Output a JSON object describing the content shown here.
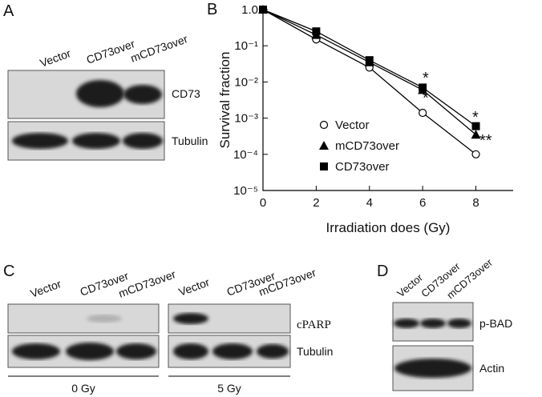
{
  "panel_a": {
    "label": "A",
    "lanes": [
      "Vector",
      "CD73over",
      "mCD73over"
    ],
    "blots": [
      "CD73",
      "Tubulin"
    ]
  },
  "chart_data": {
    "type": "line",
    "panel_label": "B",
    "xlabel": "Irradiation does (Gy)",
    "ylabel": "Survival fraction",
    "x": [
      0,
      2,
      4,
      6,
      8
    ],
    "series": [
      {
        "name": "Vector",
        "color": "#000000",
        "marker": "circle",
        "values": [
          1.0,
          0.15,
          0.025,
          0.0014,
          0.0001
        ]
      },
      {
        "name": "mCD73over",
        "color": "#000000",
        "marker": "triangle",
        "values": [
          1.0,
          0.2,
          0.035,
          0.006,
          0.00035
        ]
      },
      {
        "name": "CD73over",
        "color": "#000000",
        "marker": "square",
        "values": [
          1.0,
          0.25,
          0.04,
          0.007,
          0.0006
        ]
      }
    ],
    "xlim": [
      0,
      9.4
    ],
    "xticks": [
      0,
      2,
      4,
      6,
      8
    ],
    "ylim": [
      1e-05,
      1
    ],
    "yticks": [
      {
        "value": 1,
        "label": "1.0"
      },
      {
        "value": 0.1,
        "label": "10⁻¹"
      },
      {
        "value": 0.01,
        "label": "10⁻²"
      },
      {
        "value": 0.001,
        "label": "10⁻³"
      },
      {
        "value": 0.0001,
        "label": "10⁻⁴"
      },
      {
        "value": 1e-05,
        "label": "10⁻⁵"
      }
    ],
    "log_y": true,
    "annotations": [
      "*",
      "*",
      "*",
      "**"
    ]
  },
  "panel_c": {
    "label": "C",
    "groups": [
      {
        "lanes": [
          "Vector",
          "CD73over",
          "mCD73over"
        ],
        "dose": "0 Gy"
      },
      {
        "lanes": [
          "Vector",
          "CD73over",
          "mCD73over"
        ],
        "dose": "5 Gy"
      }
    ],
    "blots": [
      "cPARP",
      "Tubulin"
    ]
  },
  "panel_d": {
    "label": "D",
    "lanes": [
      "Vector",
      "CD73over",
      "mCD73over"
    ],
    "blots": [
      "p-BAD",
      "Actin"
    ]
  }
}
